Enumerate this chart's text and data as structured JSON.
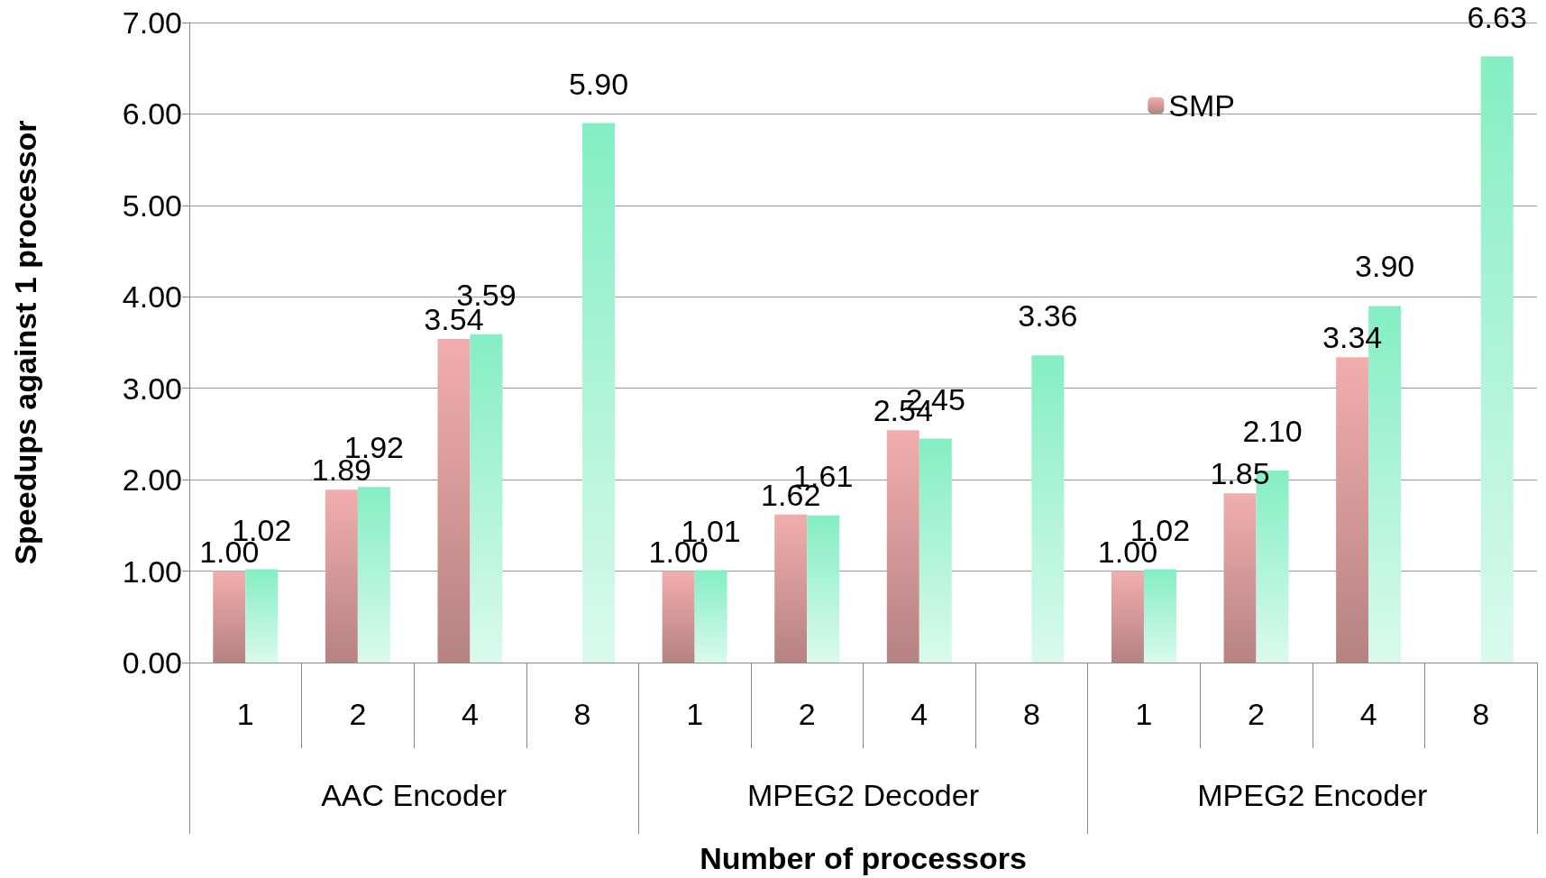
{
  "chart_data": {
    "type": "bar",
    "xlabel": "Number of processors",
    "ylabel": "Speedups against 1 processor",
    "categories": [
      "1",
      "2",
      "4",
      "8",
      "1",
      "2",
      "4",
      "8",
      "1",
      "2",
      "4",
      "8"
    ],
    "annotations": [
      "AAC Encoder",
      "MPEG2 Decoder",
      "MPEG2 Encoder"
    ],
    "series": [
      {
        "name": "SMP",
        "color": "#f2adad",
        "values": [
          1.0,
          1.89,
          3.54,
          null,
          1.0,
          1.62,
          2.54,
          null,
          1.0,
          1.85,
          3.34,
          null
        ],
        "value_labels": [
          "1.00",
          "1.89",
          "3.54",
          null,
          "1.00",
          "1.62",
          "2.54",
          null,
          "1.00",
          "1.85",
          "3.34",
          null
        ]
      },
      {
        "color": "#84eec4",
        "values": [
          1.02,
          1.92,
          3.59,
          5.9,
          1.01,
          1.61,
          2.45,
          3.36,
          1.02,
          2.1,
          3.9,
          6.63
        ],
        "value_labels": [
          "1.02",
          "1.92",
          "3.59",
          "5.90",
          "1.01",
          "1.61",
          "2.45",
          "3.36",
          "1.02",
          "2.10",
          "3.90",
          "6.63"
        ]
      }
    ],
    "ylim": [
      0,
      7
    ],
    "yticks": [
      {
        "value": 0,
        "label": "0.00"
      },
      {
        "value": 1,
        "label": "1.00"
      },
      {
        "value": 2,
        "label": "2.00"
      },
      {
        "value": 3,
        "label": "3.00"
      },
      {
        "value": 4,
        "label": "4.00"
      },
      {
        "value": 5,
        "label": "5.00"
      },
      {
        "value": 6,
        "label": "6.00"
      },
      {
        "value": 7,
        "label": "7.00"
      }
    ],
    "grid": "y",
    "legend": "top right"
  }
}
